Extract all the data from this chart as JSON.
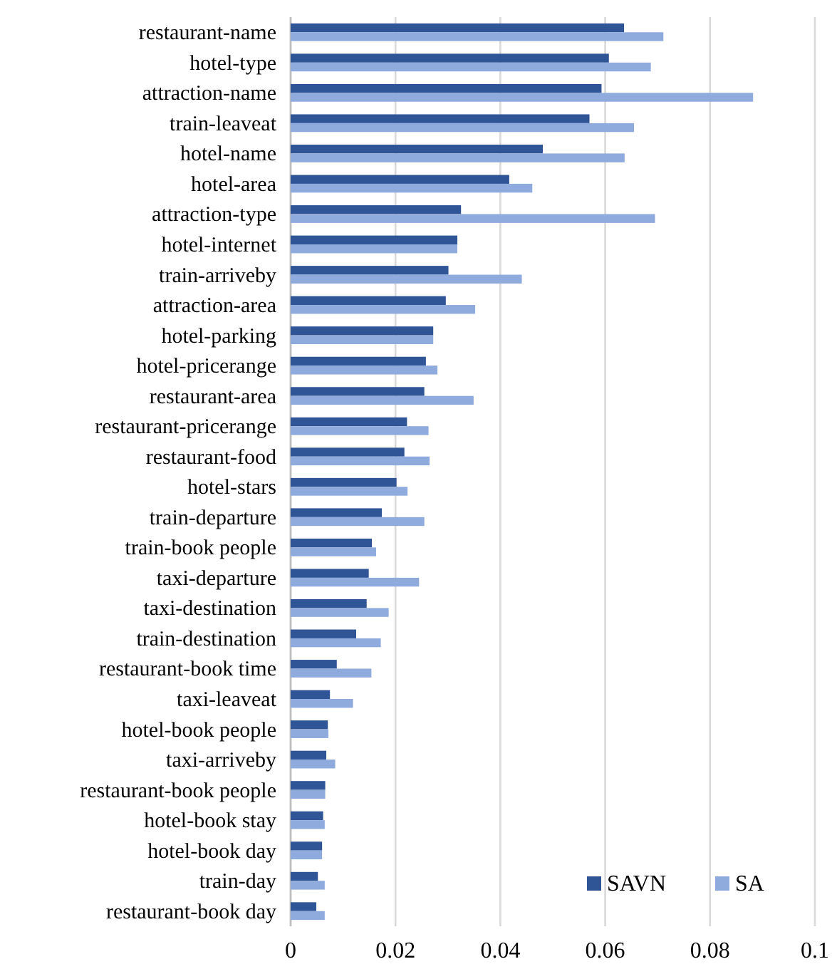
{
  "chart_data": {
    "type": "bar",
    "orientation": "horizontal",
    "categories": [
      "restaurant-name",
      "hotel-type",
      "attraction-name",
      "train-leaveat",
      "hotel-name",
      "hotel-area",
      "attraction-type",
      "hotel-internet",
      "train-arriveby",
      "attraction-area",
      "hotel-parking",
      "hotel-pricerange",
      "restaurant-area",
      "restaurant-pricerange",
      "restaurant-food",
      "hotel-stars",
      "train-departure",
      "train-book people",
      "taxi-departure",
      "taxi-destination",
      "train-destination",
      "restaurant-book time",
      "taxi-leaveat",
      "hotel-book people",
      "taxi-arriveby",
      "restaurant-book people",
      "hotel-book stay",
      "hotel-book day",
      "train-day",
      "restaurant-book day"
    ],
    "series": [
      {
        "name": "SAVN",
        "color": "#2f5597",
        "values": [
          0.0636,
          0.0607,
          0.0593,
          0.057,
          0.0481,
          0.0417,
          0.0325,
          0.0318,
          0.0301,
          0.0296,
          0.0272,
          0.0258,
          0.0255,
          0.0222,
          0.0217,
          0.0202,
          0.0174,
          0.0155,
          0.0149,
          0.0145,
          0.0125,
          0.0088,
          0.0075,
          0.0071,
          0.0068,
          0.0066,
          0.0062,
          0.006,
          0.0052,
          0.0049
        ]
      },
      {
        "name": "SA",
        "color": "#8faadc",
        "values": [
          0.0711,
          0.0687,
          0.0882,
          0.0655,
          0.0637,
          0.0461,
          0.0695,
          0.0318,
          0.0441,
          0.0352,
          0.0272,
          0.028,
          0.0349,
          0.0263,
          0.0265,
          0.0223,
          0.0255,
          0.0163,
          0.0245,
          0.0187,
          0.0172,
          0.0154,
          0.0119,
          0.0072,
          0.0085,
          0.0066,
          0.0065,
          0.006,
          0.0065,
          0.0065
        ]
      }
    ],
    "xlim": [
      0,
      0.1
    ],
    "xticks": [
      0,
      0.02,
      0.04,
      0.06,
      0.08,
      0.1
    ],
    "grid": "x",
    "legend": "bottom right"
  }
}
